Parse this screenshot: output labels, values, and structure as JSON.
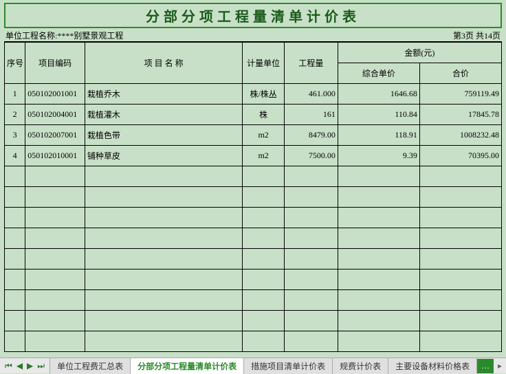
{
  "title": "分部分项工程量清单计价表",
  "project_label": "单位工程名称:****别墅景观工程",
  "page_info": "第3页 共14页",
  "header": {
    "seq": "序号",
    "code": "项目编码",
    "name": "项 目 名 称",
    "unit": "计量单位",
    "qty": "工程量",
    "amount_group": "金额(元)",
    "uprice": "综合单价",
    "total": "合价"
  },
  "rows": [
    {
      "seq": "1",
      "code": "050102001001",
      "name": "栽植乔木",
      "unit": "株/株丛",
      "qty": "461.000",
      "uprice": "1646.68",
      "total": "759119.49"
    },
    {
      "seq": "2",
      "code": "050102004001",
      "name": "栽植灌木",
      "unit": "株",
      "qty": "161",
      "uprice": "110.84",
      "total": "17845.78"
    },
    {
      "seq": "3",
      "code": "050102007001",
      "name": "栽植色带",
      "unit": "m2",
      "qty": "8479.00",
      "uprice": "118.91",
      "total": "1008232.48"
    },
    {
      "seq": "4",
      "code": "050102010001",
      "name": "铺种草皮",
      "unit": "m2",
      "qty": "7500.00",
      "uprice": "9.39",
      "total": "70395.00"
    },
    {
      "seq": "",
      "code": "",
      "name": "",
      "unit": "",
      "qty": "",
      "uprice": "",
      "total": ""
    },
    {
      "seq": "",
      "code": "",
      "name": "",
      "unit": "",
      "qty": "",
      "uprice": "",
      "total": ""
    },
    {
      "seq": "",
      "code": "",
      "name": "",
      "unit": "",
      "qty": "",
      "uprice": "",
      "total": ""
    },
    {
      "seq": "",
      "code": "",
      "name": "",
      "unit": "",
      "qty": "",
      "uprice": "",
      "total": ""
    },
    {
      "seq": "",
      "code": "",
      "name": "",
      "unit": "",
      "qty": "",
      "uprice": "",
      "total": ""
    },
    {
      "seq": "",
      "code": "",
      "name": "",
      "unit": "",
      "qty": "",
      "uprice": "",
      "total": ""
    },
    {
      "seq": "",
      "code": "",
      "name": "",
      "unit": "",
      "qty": "",
      "uprice": "",
      "total": ""
    },
    {
      "seq": "",
      "code": "",
      "name": "",
      "unit": "",
      "qty": "",
      "uprice": "",
      "total": ""
    },
    {
      "seq": "",
      "code": "",
      "name": "",
      "unit": "",
      "qty": "",
      "uprice": "",
      "total": ""
    }
  ],
  "tabs": [
    {
      "label": "单位工程费汇总表",
      "active": false
    },
    {
      "label": "分部分项工程量清单计价表",
      "active": true
    },
    {
      "label": "措施项目清单计价表",
      "active": false
    },
    {
      "label": "规费计价表",
      "active": false
    },
    {
      "label": "主要设备材料价格表",
      "active": false
    }
  ],
  "nav": {
    "first": "⏮",
    "prev": "◀",
    "next": "▶",
    "last": "⏭",
    "more": "…"
  }
}
